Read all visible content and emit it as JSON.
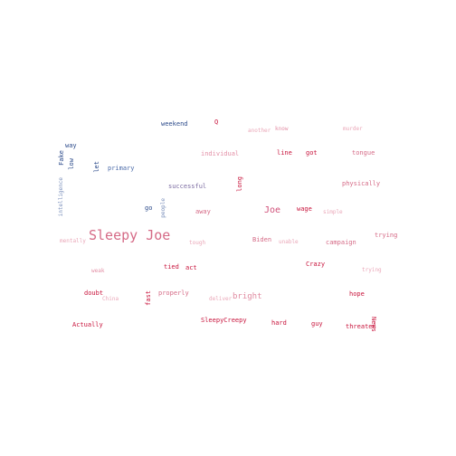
{
  "words": {
    "sleepy_joe": "Sleepy Joe",
    "joe": "Joe",
    "bright": "bright",
    "weekend": "weekend",
    "q": "Q",
    "another": "another",
    "know": "know",
    "murder": "murder",
    "way": "way",
    "fake": "Fake",
    "low": "low",
    "let": "let",
    "primary": "primary",
    "individual": "individual",
    "line": "line",
    "got": "got",
    "tongue": "tongue",
    "intelligence": "intelligence",
    "long": "long",
    "physically": "physically",
    "successful": "successful",
    "go": "go",
    "people": "people",
    "away": "away",
    "wage": "wage",
    "simple": "simple",
    "mentally": "mentally",
    "tough": "tough",
    "biden": "Biden",
    "unable": "unable",
    "campaign": "campaign",
    "trying_upper": "trying",
    "crazy": "Crazy",
    "trying_lower": "trying",
    "weak": "weak",
    "tied": "tied",
    "act": "act",
    "doubt": "doubt",
    "china": "China",
    "fast": "fast",
    "properly": "properly",
    "deliver": "deliver",
    "hope": "hope",
    "actually": "Actually",
    "sleepycreepy": "SleepyCreepy",
    "hard": "hard",
    "guy": "guy",
    "threaten": "threaten",
    "news": "News"
  },
  "colors": {
    "dark_red": "#c8143c",
    "mid_pink": "#d56a86",
    "light_pink": "#eaa7b8",
    "navy": "#2b4a8a",
    "slate": "#7a8fbb"
  }
}
